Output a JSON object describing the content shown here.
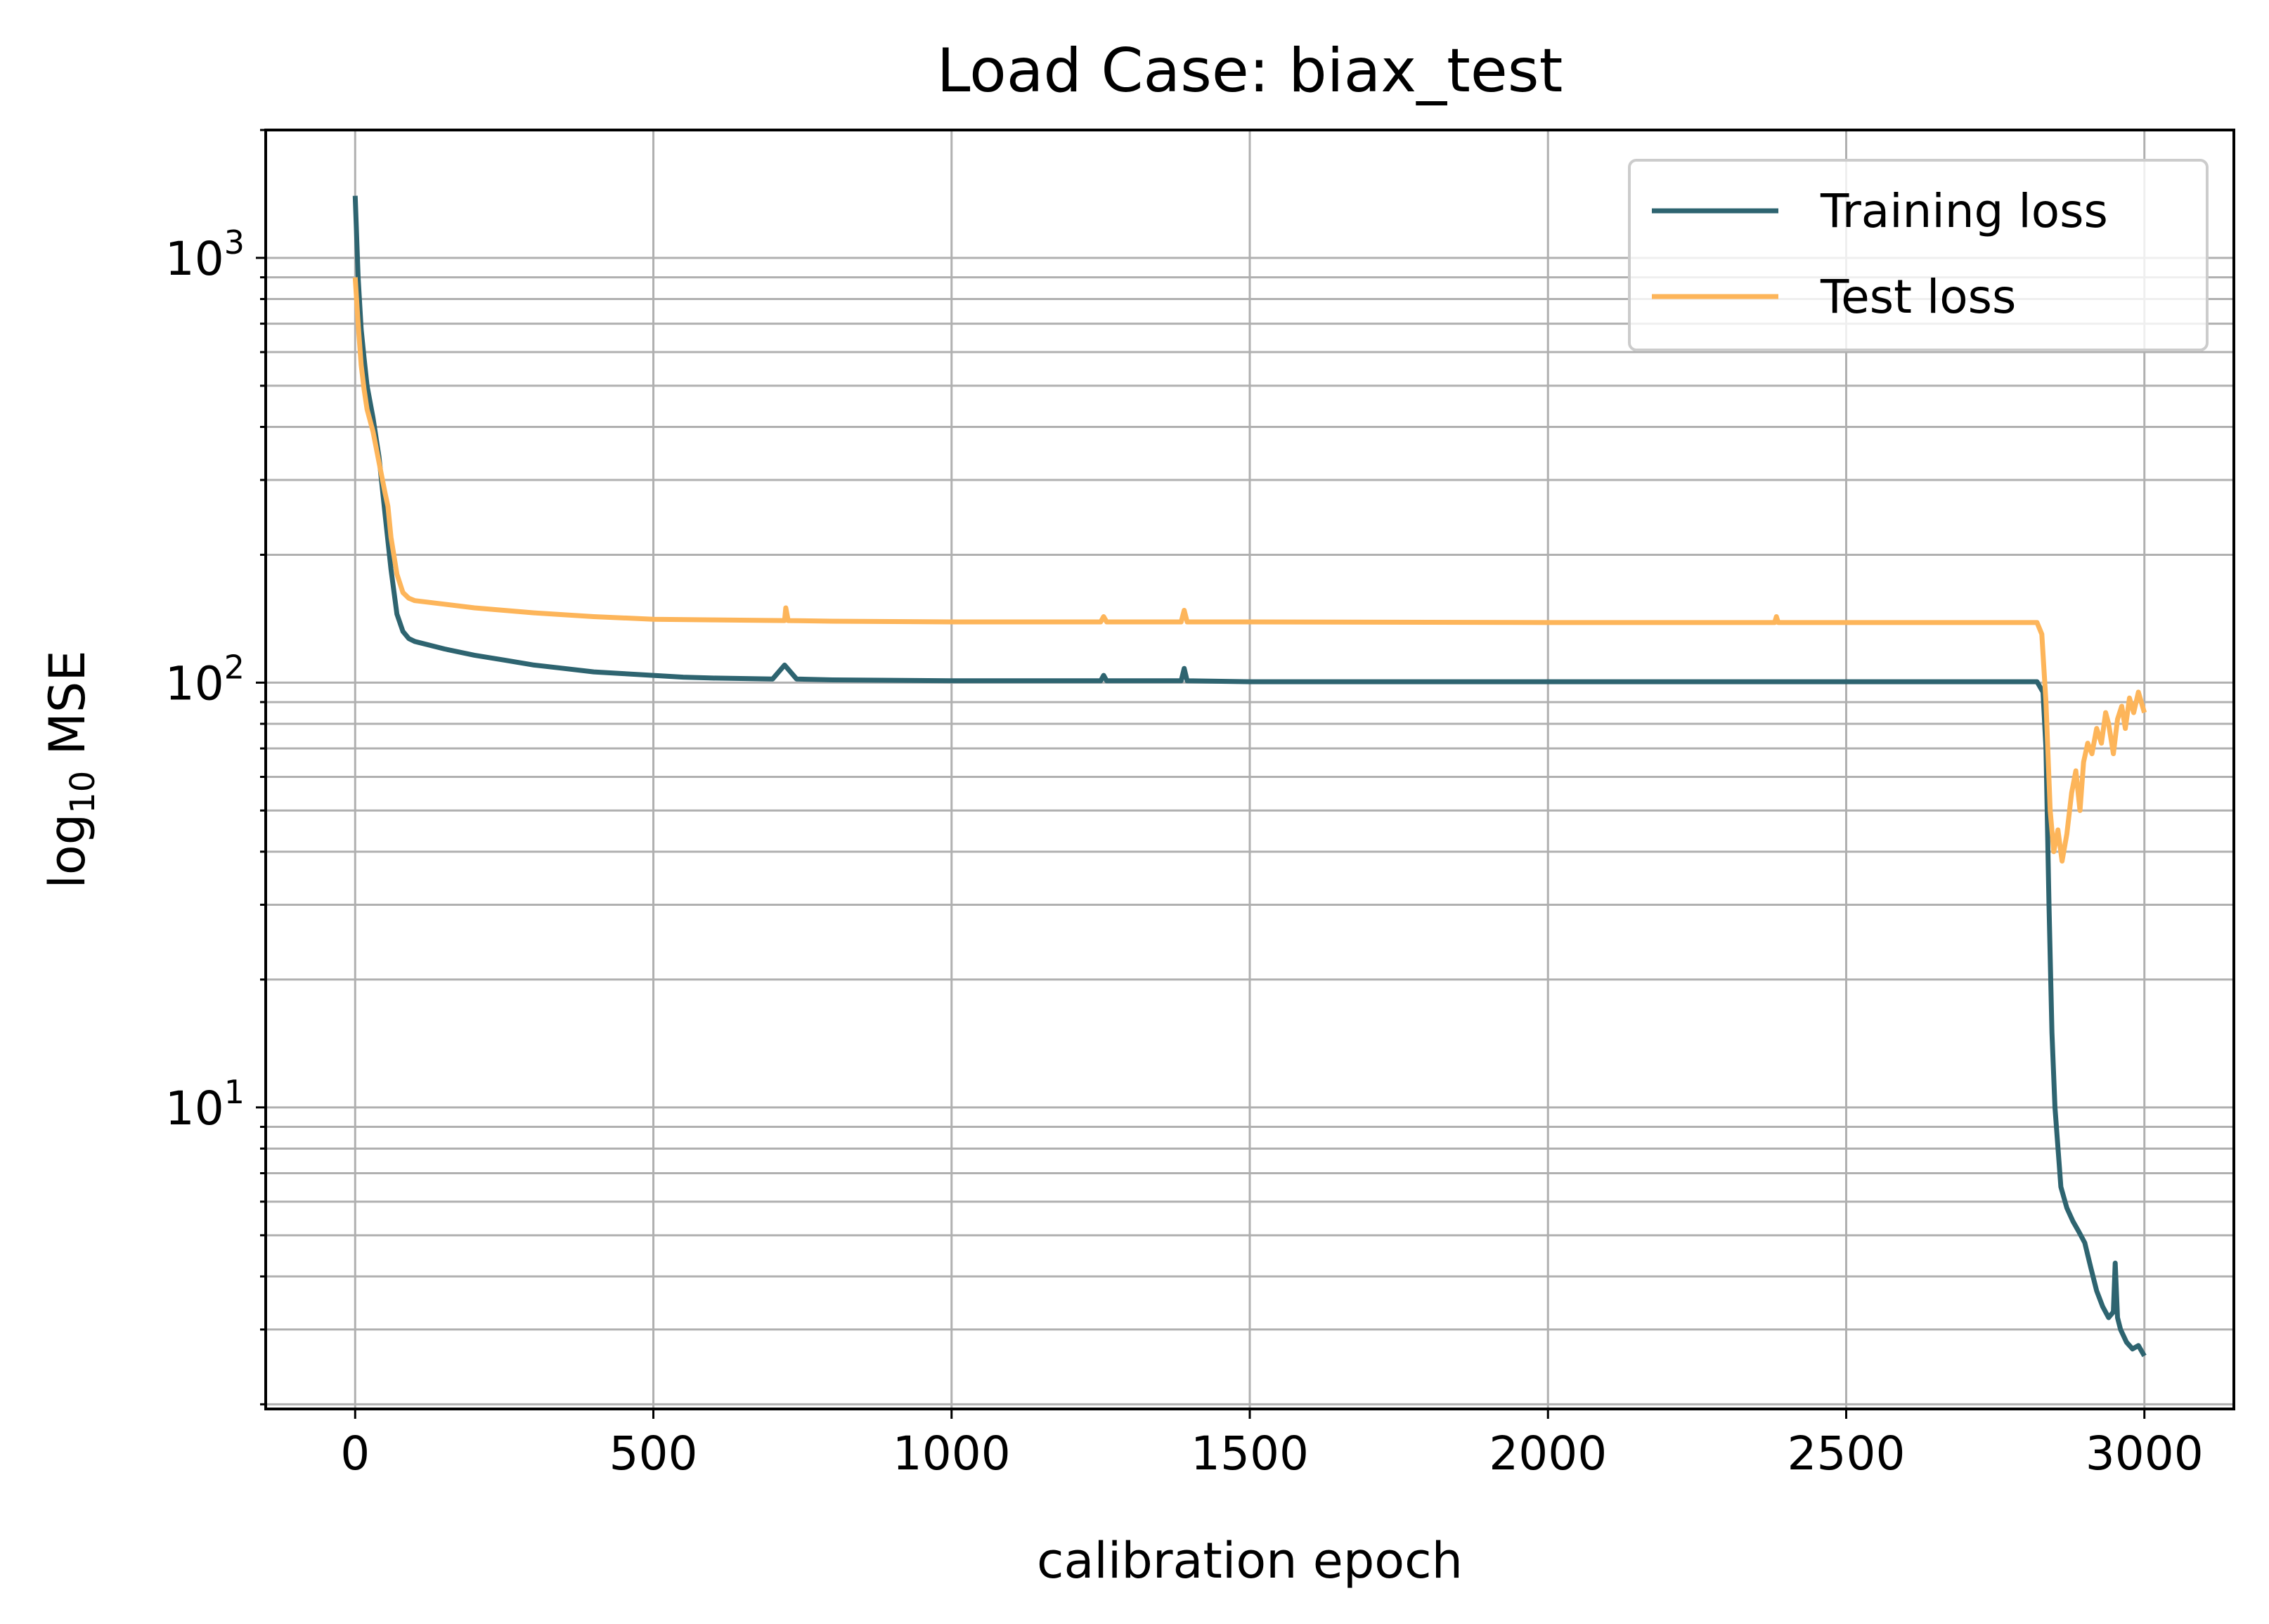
{
  "chart_data": {
    "type": "line",
    "title": "Load Case: biax_test",
    "xlabel": "calibration epoch",
    "ylabel": "log",
    "ylabel_subscript": "10",
    "ylabel_suffix": " MSE",
    "xlim": [
      -150,
      3150
    ],
    "ylim": [
      1.95,
      2000
    ],
    "y_scale": "log",
    "grid": true,
    "grid_minor": true,
    "legend_position": "top-right",
    "x_ticks": [
      {
        "value": 0,
        "label": "0"
      },
      {
        "value": 500,
        "label": "500"
      },
      {
        "value": 1000,
        "label": "1000"
      },
      {
        "value": 1500,
        "label": "1500"
      },
      {
        "value": 2000,
        "label": "2000"
      },
      {
        "value": 2500,
        "label": "2500"
      },
      {
        "value": 3000,
        "label": "3000"
      }
    ],
    "y_ticks": [
      {
        "value": 10,
        "base": "10",
        "exp": "1"
      },
      {
        "value": 100,
        "base": "10",
        "exp": "2"
      },
      {
        "value": 1000,
        "base": "10",
        "exp": "3"
      }
    ],
    "series": [
      {
        "name": "Training loss",
        "color": "#2e6470",
        "points": [
          [
            0,
            1400
          ],
          [
            5,
            900
          ],
          [
            10,
            680
          ],
          [
            15,
            580
          ],
          [
            20,
            500
          ],
          [
            30,
            420
          ],
          [
            40,
            340
          ],
          [
            50,
            250
          ],
          [
            60,
            185
          ],
          [
            70,
            145
          ],
          [
            80,
            132
          ],
          [
            90,
            127
          ],
          [
            100,
            125
          ],
          [
            150,
            120
          ],
          [
            200,
            116
          ],
          [
            250,
            113
          ],
          [
            300,
            110
          ],
          [
            350,
            108
          ],
          [
            400,
            106
          ],
          [
            450,
            105
          ],
          [
            500,
            104
          ],
          [
            550,
            103
          ],
          [
            600,
            102.5
          ],
          [
            700,
            102
          ],
          [
            720,
            110
          ],
          [
            740,
            102
          ],
          [
            800,
            101.5
          ],
          [
            1000,
            101
          ],
          [
            1250,
            101
          ],
          [
            1255,
            104
          ],
          [
            1260,
            101
          ],
          [
            1385,
            101
          ],
          [
            1390,
            108
          ],
          [
            1395,
            101
          ],
          [
            1500,
            100.5
          ],
          [
            2000,
            100.5
          ],
          [
            2500,
            100.5
          ],
          [
            2700,
            100.5
          ],
          [
            2820,
            100.5
          ],
          [
            2830,
            95
          ],
          [
            2835,
            70
          ],
          [
            2840,
            30
          ],
          [
            2845,
            15
          ],
          [
            2850,
            10
          ],
          [
            2860,
            6.5
          ],
          [
            2870,
            5.8
          ],
          [
            2880,
            5.4
          ],
          [
            2890,
            5.1
          ],
          [
            2900,
            4.8
          ],
          [
            2910,
            4.2
          ],
          [
            2920,
            3.7
          ],
          [
            2930,
            3.4
          ],
          [
            2940,
            3.2
          ],
          [
            2948,
            3.3
          ],
          [
            2951,
            4.3
          ],
          [
            2955,
            3.2
          ],
          [
            2960,
            3.0
          ],
          [
            2970,
            2.8
          ],
          [
            2980,
            2.7
          ],
          [
            2990,
            2.75
          ],
          [
            3000,
            2.6
          ]
        ]
      },
      {
        "name": "Test loss",
        "color": "#fdb55a",
        "points": [
          [
            0,
            900
          ],
          [
            5,
            700
          ],
          [
            10,
            560
          ],
          [
            15,
            490
          ],
          [
            20,
            440
          ],
          [
            30,
            390
          ],
          [
            40,
            330
          ],
          [
            50,
            280
          ],
          [
            55,
            260
          ],
          [
            60,
            220
          ],
          [
            70,
            180
          ],
          [
            80,
            163
          ],
          [
            90,
            158
          ],
          [
            100,
            156
          ],
          [
            150,
            153
          ],
          [
            200,
            150
          ],
          [
            300,
            146
          ],
          [
            400,
            143
          ],
          [
            500,
            141
          ],
          [
            600,
            140.5
          ],
          [
            720,
            140
          ],
          [
            722,
            150
          ],
          [
            726,
            140
          ],
          [
            800,
            139.5
          ],
          [
            1000,
            139
          ],
          [
            1250,
            139
          ],
          [
            1255,
            143
          ],
          [
            1260,
            139
          ],
          [
            1385,
            139
          ],
          [
            1390,
            148
          ],
          [
            1395,
            139
          ],
          [
            1500,
            139
          ],
          [
            2000,
            138.5
          ],
          [
            2380,
            138.5
          ],
          [
            2383,
            143
          ],
          [
            2386,
            138.5
          ],
          [
            2500,
            138.5
          ],
          [
            2820,
            138.5
          ],
          [
            2828,
            130
          ],
          [
            2835,
            90
          ],
          [
            2842,
            50
          ],
          [
            2848,
            40
          ],
          [
            2855,
            45
          ],
          [
            2862,
            38
          ],
          [
            2870,
            44
          ],
          [
            2878,
            55
          ],
          [
            2885,
            62
          ],
          [
            2892,
            50
          ],
          [
            2898,
            65
          ],
          [
            2905,
            72
          ],
          [
            2912,
            68
          ],
          [
            2920,
            78
          ],
          [
            2928,
            72
          ],
          [
            2935,
            85
          ],
          [
            2940,
            80
          ],
          [
            2948,
            68
          ],
          [
            2955,
            82
          ],
          [
            2962,
            88
          ],
          [
            2968,
            78
          ],
          [
            2975,
            92
          ],
          [
            2982,
            85
          ],
          [
            2990,
            95
          ],
          [
            3000,
            85
          ]
        ]
      }
    ]
  }
}
